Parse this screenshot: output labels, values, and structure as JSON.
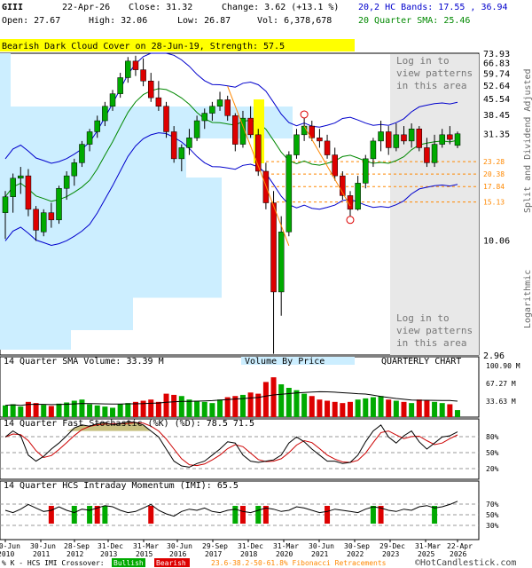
{
  "header": {
    "symbol": "GIII",
    "date": "22-Apr-26",
    "close": "Close: 31.32",
    "change": "Change: 3.62 (+13.1 %)",
    "open": "Open: 27.67",
    "high": "High: 32.06",
    "low": "Low: 26.87",
    "volume": "Vol: 6,378,678",
    "bands": "20,2 HC Bands: 17.55 , 36.94",
    "sma": "20 Quarter SMA: 25.46"
  },
  "pattern_banner": "Bearish Dark Cloud Cover on 28-Jun-19, Strength: 57.5",
  "login_note": [
    "Log in to",
    "view patterns",
    "in this area"
  ],
  "side_labels": {
    "right": "Split and Dividend Adjusted",
    "log": "Logarithmic"
  },
  "price_ticks": [
    "73.93",
    "66.83",
    "59.74",
    "52.64",
    "45.54",
    "38.45",
    "31.35",
    "10.06",
    "2.96"
  ],
  "fib_labels": [
    "23.28",
    "20.38",
    "17.84",
    "15.13"
  ],
  "volume_panel": {
    "title": "14 Quarter SMA Volume: 33.39 M",
    "vbp": "Volume By Price",
    "chart_type": "QUARTERLY CHART",
    "ticks": [
      "100.90 M",
      "67.27 M",
      "33.63 M"
    ]
  },
  "stoch_panel": {
    "title": "14 Quarter Fast Stochastic (%K) (%D): 78.5  71.5",
    "ticks": [
      "80%",
      "50%",
      "20%"
    ]
  },
  "imi_panel": {
    "title": "14 Quarter HCS Intraday Momentum (IMI): 65.5",
    "ticks": [
      "70%",
      "50%",
      "30%"
    ]
  },
  "x_ticks": [
    [
      "30-Jun",
      "2010"
    ],
    [
      "30-Jun",
      "2011"
    ],
    [
      "28-Sep",
      "2012"
    ],
    [
      "31-Dec",
      "2013"
    ],
    [
      "31-Mar",
      "2015"
    ],
    [
      "30-Jun",
      "2016"
    ],
    [
      "29-Sep",
      "2017"
    ],
    [
      "31-Dec",
      "2018"
    ],
    [
      "31-Mar",
      "2020"
    ],
    [
      "30-Jun",
      "2021"
    ],
    [
      "30-Sep",
      "2022"
    ],
    [
      "29-Dec",
      "2023"
    ],
    [
      "31-Mar",
      "2025"
    ],
    [
      "22-Apr",
      "2026"
    ]
  ],
  "footer": {
    "legend": "% K - HCS IMI Crossover:",
    "bullish": "Bullish",
    "bearish": "Bearish",
    "fib": "23.6-38.2-50-61.8% Fibonacci Retracements",
    "copyright": "©HotCandlestick.com"
  },
  "colors": {
    "up": "#00aa00",
    "down": "#dd0000",
    "band": "#0000cc",
    "sma": "#008800",
    "vbp": "#cceeff",
    "highlight": "#ffff00",
    "fib": "#ff8800"
  },
  "chart_data": {
    "type": "candlestick",
    "period": "quarterly",
    "y_scale": "log",
    "ylim": [
      2.96,
      73.93
    ],
    "candles": [
      [
        13.5,
        17.0,
        10.2,
        16.0
      ],
      [
        16.0,
        20.5,
        13.5,
        19.5
      ],
      [
        19.5,
        22.0,
        16.5,
        20.0
      ],
      [
        20.0,
        21.5,
        13.0,
        14.0
      ],
      [
        14.0,
        14.5,
        10.0,
        11.2
      ],
      [
        11.0,
        14.0,
        10.5,
        13.5
      ],
      [
        13.5,
        15.0,
        11.5,
        12.5
      ],
      [
        12.5,
        18.0,
        12.0,
        17.5
      ],
      [
        17.5,
        21.0,
        15.5,
        20.0
      ],
      [
        20.0,
        24.0,
        18.0,
        23.0
      ],
      [
        23.0,
        29.0,
        22.0,
        28.0
      ],
      [
        28.0,
        33.0,
        26.0,
        32.0
      ],
      [
        32.0,
        38.0,
        30.0,
        36.0
      ],
      [
        36.0,
        44.0,
        34.0,
        42.0
      ],
      [
        42.0,
        50.0,
        40.0,
        48.0
      ],
      [
        48.0,
        60.0,
        46.0,
        57.0
      ],
      [
        57.0,
        71.0,
        54.0,
        68.0
      ],
      [
        68.0,
        72.0,
        58.0,
        62.0
      ],
      [
        62.0,
        70.0,
        52.0,
        55.0
      ],
      [
        55.0,
        60.0,
        44.0,
        46.0
      ],
      [
        46.0,
        55.0,
        40.0,
        42.0
      ],
      [
        42.0,
        44.0,
        30.0,
        32.0
      ],
      [
        32.0,
        34.0,
        23.0,
        24.0
      ],
      [
        24.0,
        28.0,
        21.0,
        27.0
      ],
      [
        27.0,
        33.0,
        25.0,
        30.0
      ],
      [
        30.0,
        38.0,
        29.0,
        36.0
      ],
      [
        36.0,
        41.0,
        33.0,
        39.0
      ],
      [
        39.0,
        44.0,
        36.0,
        42.0
      ],
      [
        42.0,
        49.0,
        40.0,
        45.0
      ],
      [
        45.0,
        47.0,
        36.0,
        38.0
      ],
      [
        38.0,
        39.0,
        26.0,
        28.0
      ],
      [
        28.0,
        40.0,
        27.0,
        37.0
      ],
      [
        37.0,
        42.0,
        30.0,
        31.0
      ],
      [
        31.0,
        33.0,
        20.0,
        21.0
      ],
      [
        21.0,
        23.0,
        14.0,
        15.0
      ],
      [
        15.0,
        17.0,
        3.0,
        5.8
      ],
      [
        5.8,
        13.0,
        4.5,
        11.0
      ],
      [
        11.0,
        26.0,
        10.5,
        25.0
      ],
      [
        25.0,
        33.0,
        24.0,
        31.0
      ],
      [
        31.0,
        37.0,
        29.0,
        34.0
      ],
      [
        34.0,
        36.0,
        29.0,
        30.0
      ],
      [
        30.0,
        33.0,
        27.0,
        29.0
      ],
      [
        29.0,
        31.0,
        24.0,
        25.0
      ],
      [
        25.0,
        27.0,
        19.0,
        20.0
      ],
      [
        20.0,
        21.0,
        15.5,
        16.2
      ],
      [
        16.2,
        17.0,
        13.0,
        14.0
      ],
      [
        14.0,
        20.0,
        13.8,
        18.5
      ],
      [
        18.5,
        25.0,
        17.5,
        24.0
      ],
      [
        24.0,
        30.0,
        22.0,
        29.0
      ],
      [
        29.0,
        36.0,
        26.0,
        32.0
      ],
      [
        32.0,
        34.0,
        25.0,
        27.0
      ],
      [
        27.0,
        35.0,
        26.0,
        31.0
      ],
      [
        31.0,
        34.0,
        28.0,
        29.0
      ],
      [
        29.0,
        35.0,
        27.0,
        33.0
      ],
      [
        33.0,
        34.0,
        26.0,
        27.0
      ],
      [
        27.0,
        30.0,
        22.0,
        23.0
      ],
      [
        23.0,
        31.0,
        22.0,
        28.0
      ],
      [
        28.0,
        33.0,
        27.0,
        31.0
      ],
      [
        31.0,
        34.0,
        28.0,
        29.5
      ],
      [
        27.67,
        32.06,
        26.87,
        31.32
      ]
    ],
    "series": [
      {
        "name": "Upper HC Band",
        "values_approx_start_end": [
          17.0,
          36.94
        ]
      },
      {
        "name": "20 Quarter SMA",
        "values_approx_start_end": [
          12.0,
          25.46
        ]
      },
      {
        "name": "Lower HC Band",
        "values_approx_start_end": [
          10.0,
          17.55
        ]
      }
    ],
    "fibonacci": [
      23.28,
      20.38,
      17.84,
      15.13
    ],
    "xlabel": "",
    "ylabel": ""
  }
}
